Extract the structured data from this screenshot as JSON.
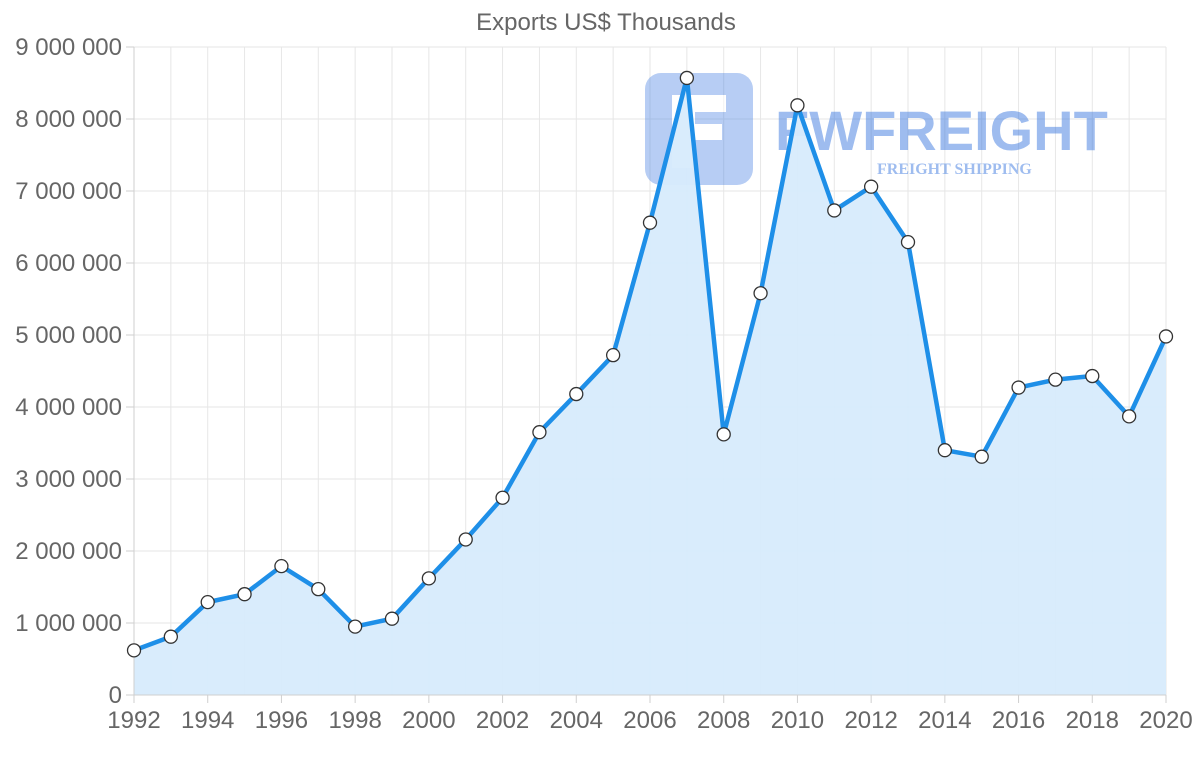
{
  "watermark": {
    "brand": "FWFREIGHT",
    "tagline": "FREIGHT SHIPPING",
    "color": "#3f7be0"
  },
  "chart_data": {
    "type": "area",
    "title": "Exports US$ Thousands",
    "xlabel": "",
    "ylabel": "",
    "ylim": [
      0,
      9000000
    ],
    "y_ticks": [
      0,
      1000000,
      2000000,
      3000000,
      4000000,
      5000000,
      6000000,
      7000000,
      8000000,
      9000000
    ],
    "y_tick_labels": [
      "0",
      "1 000 000",
      "2 000 000",
      "3 000 000",
      "4 000 000",
      "5 000 000",
      "6 000 000",
      "7 000 000",
      "8 000 000",
      "9 000 000"
    ],
    "x_tick_labels": [
      "1992",
      "1994",
      "1996",
      "1998",
      "2000",
      "2002",
      "2004",
      "2006",
      "2008",
      "2010",
      "2012",
      "2014",
      "2016",
      "2018",
      "2020"
    ],
    "grid": true,
    "line_color": "#1e8fe8",
    "fill_color": "#d7ebfc",
    "x": [
      1992,
      1993,
      1994,
      1995,
      1996,
      1997,
      1998,
      1999,
      2000,
      2001,
      2002,
      2003,
      2004,
      2005,
      2006,
      2007,
      2008,
      2009,
      2010,
      2011,
      2012,
      2013,
      2014,
      2015,
      2016,
      2017,
      2018,
      2019,
      2020
    ],
    "values": [
      620000,
      810000,
      1290000,
      1400000,
      1790000,
      1470000,
      950000,
      1060000,
      1620000,
      2160000,
      2740000,
      3650000,
      4180000,
      4720000,
      6560000,
      8570000,
      3620000,
      5580000,
      8190000,
      6730000,
      7060000,
      6290000,
      3400000,
      3310000,
      4270000,
      4380000,
      4430000,
      3870000,
      4980000
    ]
  }
}
